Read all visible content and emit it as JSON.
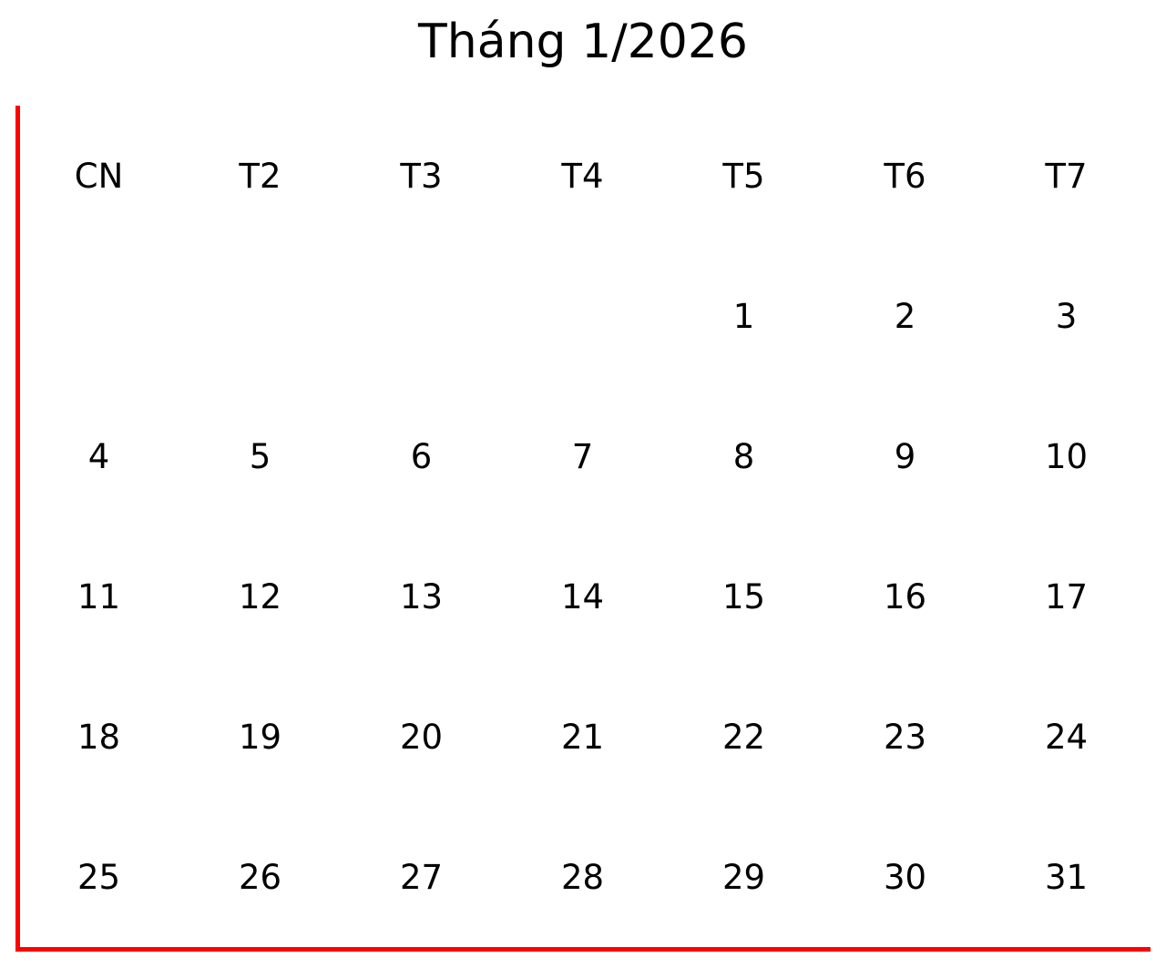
{
  "calendar": {
    "title": "Tháng 1/2026",
    "weekdays": [
      "CN",
      "T2",
      "T3",
      "T4",
      "T5",
      "T6",
      "T7"
    ],
    "weeks": [
      [
        "",
        "",
        "",
        "",
        "1",
        "2",
        "3"
      ],
      [
        "4",
        "5",
        "6",
        "7",
        "8",
        "9",
        "10"
      ],
      [
        "11",
        "12",
        "13",
        "14",
        "15",
        "16",
        "17"
      ],
      [
        "18",
        "19",
        "20",
        "21",
        "22",
        "23",
        "24"
      ],
      [
        "25",
        "26",
        "27",
        "28",
        "29",
        "30",
        "31"
      ]
    ],
    "accent_color": "#ff0000"
  }
}
